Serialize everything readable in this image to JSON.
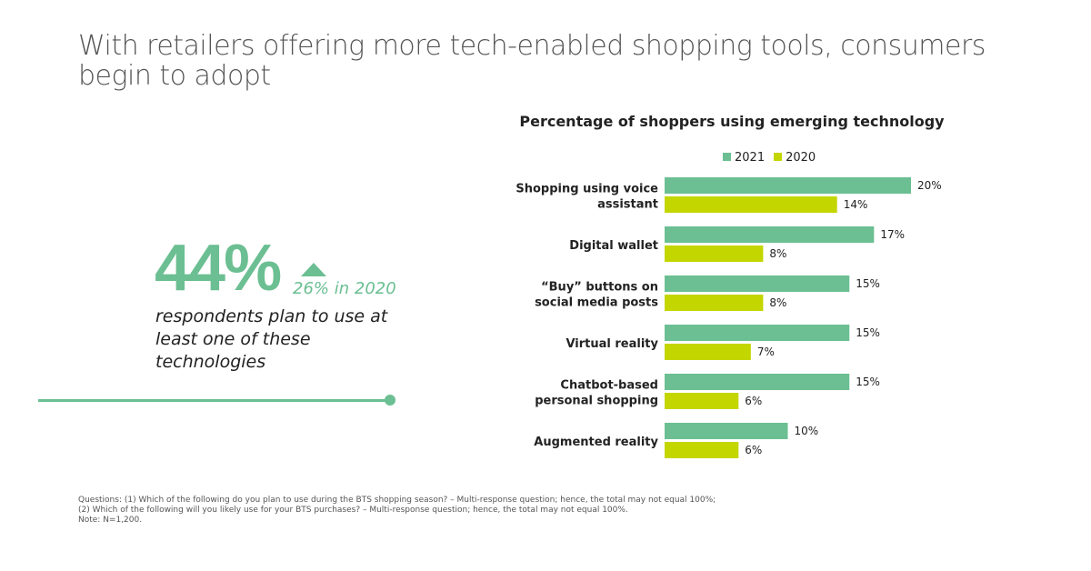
{
  "title": "With retailers offering more tech-enabled shopping tools, consumers begin to adopt",
  "stat": {
    "value": "44%",
    "previous": "26% in 2020",
    "description": "respondents plan to use at least one of these technologies"
  },
  "notes": [
    "Questions: (1) Which of the following do you plan to use during the BTS shopping season? – Multi-response question; hence, the total may not equal 100%;",
    "(2) Which of the following will you likely use for your BTS purchases? – Multi-response question; hence, the total may not equal 100%.",
    "Note: N=1,200."
  ],
  "colors": {
    "s2021": "#6bbf92",
    "s2020": "#c4d600",
    "accent": "#6bbf92"
  },
  "chart_data": {
    "type": "bar",
    "orientation": "horizontal",
    "title": "Percentage of shoppers using emerging technology",
    "categories": [
      [
        "Shopping using voice",
        "assistant"
      ],
      [
        "Digital wallet"
      ],
      [
        "“Buy” buttons on",
        "social media posts"
      ],
      [
        "Virtual reality"
      ],
      [
        "Chatbot-based",
        "personal shopping"
      ],
      [
        "Augmented reality"
      ]
    ],
    "series": [
      {
        "name": "2021",
        "values": [
          20,
          17,
          15,
          15,
          15,
          10
        ]
      },
      {
        "name": "2020",
        "values": [
          14,
          8,
          8,
          7,
          6,
          6
        ]
      }
    ],
    "unit": "%",
    "xlim": [
      0,
      20
    ],
    "legend": "top",
    "grid": false
  }
}
